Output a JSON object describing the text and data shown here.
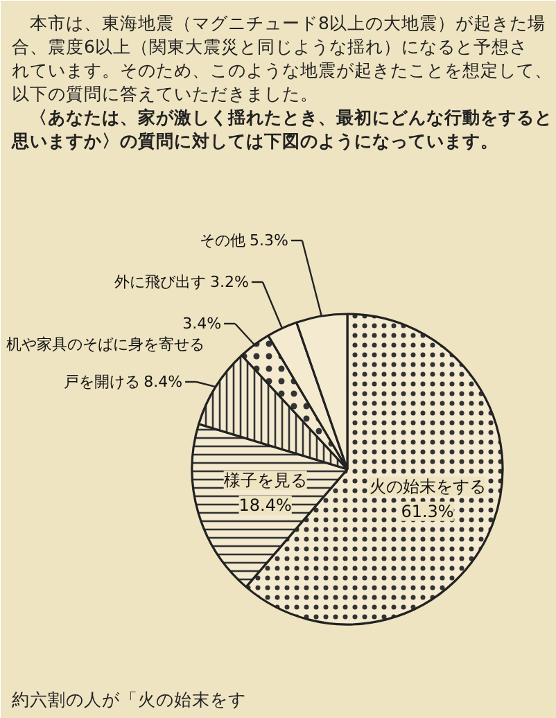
{
  "chart_data": {
    "type": "pie",
    "categories": [
      "火の始末をする",
      "様子を見る",
      "戸を開ける",
      "机や家具のそばに身を寄せる",
      "外に飛び出す",
      "その他"
    ],
    "values": [
      61.3,
      18.4,
      8.4,
      3.4,
      3.2,
      5.3
    ],
    "value_labels": [
      "61.3%",
      "18.4%",
      "8.4%",
      "3.4%",
      "3.2%",
      "5.3%"
    ],
    "colors": [
      "#f3ead0",
      "#f3ead0",
      "#f3ead0",
      "#f3ead0",
      "#f3ead0",
      "#f3ead0"
    ],
    "annotations": [
      "本市は、東海地震（マグニチュード8以上の大地震）が起きた場合、震度6以上（関東大震災と同じような揺れ）になると予想されています。そのため、このような地震が起きたことを想定して、以下の質問に答えていただきました。",
      "〈あなたは、家が激しく揺れたとき、最初にどんな行動をすると思いますか〉の質問に対しては下図のようになっています。",
      "約六割の人が「火の始末をす"
    ]
  }
}
